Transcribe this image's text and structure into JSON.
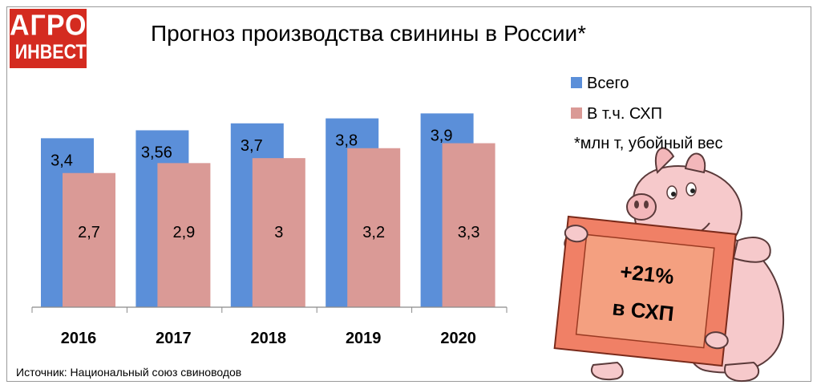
{
  "logo": {
    "line1": "АГРО",
    "line2": "ИНВЕСТОР"
  },
  "chart_data": {
    "type": "bar",
    "title": "Прогноз производства свинины в России*",
    "categories": [
      "2016",
      "2017",
      "2018",
      "2019",
      "2020"
    ],
    "series": [
      {
        "name": "Всего",
        "values": [
          3.4,
          3.56,
          3.7,
          3.8,
          3.9
        ],
        "labels": [
          "3,4",
          "3,56",
          "3,7",
          "3,8",
          "3,9"
        ],
        "color": "#5b8fd9"
      },
      {
        "name": "В т.ч. СХП",
        "values": [
          2.7,
          2.9,
          3.0,
          3.2,
          3.3
        ],
        "labels": [
          "2,7",
          "2,9",
          "3",
          "3,2",
          "3,3"
        ],
        "color": "#da9a96"
      }
    ],
    "ylim": [
      0,
      4.1
    ],
    "grid": false,
    "legend": "right",
    "note": "*млн т, убойный вес"
  },
  "callout": {
    "line1": "+21%",
    "line2": "в СХП",
    "color": "#f08066"
  },
  "source": "Источник: Национальный союз свиноводов"
}
